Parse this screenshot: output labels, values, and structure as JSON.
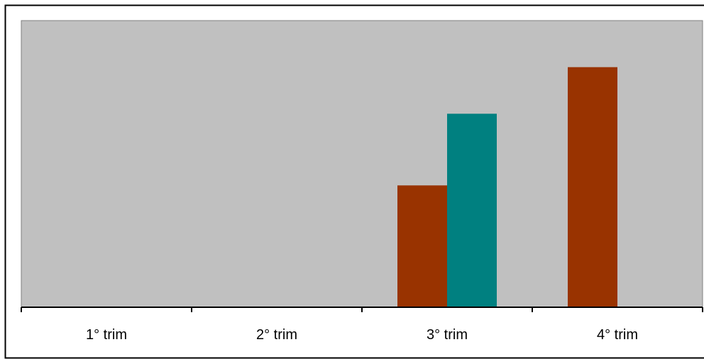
{
  "chart_data": {
    "type": "bar",
    "title": "",
    "xlabel": "",
    "ylabel": "",
    "categories": [
      "1° trim",
      "2° trim",
      "3° trim",
      "4° trim"
    ],
    "series": [
      {
        "color": "#993300",
        "values": [
          null,
          null,
          170,
          335
        ]
      },
      {
        "color": "#008080",
        "values": [
          null,
          null,
          270,
          null
        ]
      }
    ],
    "ylim": [
      0,
      400
    ],
    "grid": false,
    "legend": "none",
    "plot_background": "#c0c0c0"
  }
}
